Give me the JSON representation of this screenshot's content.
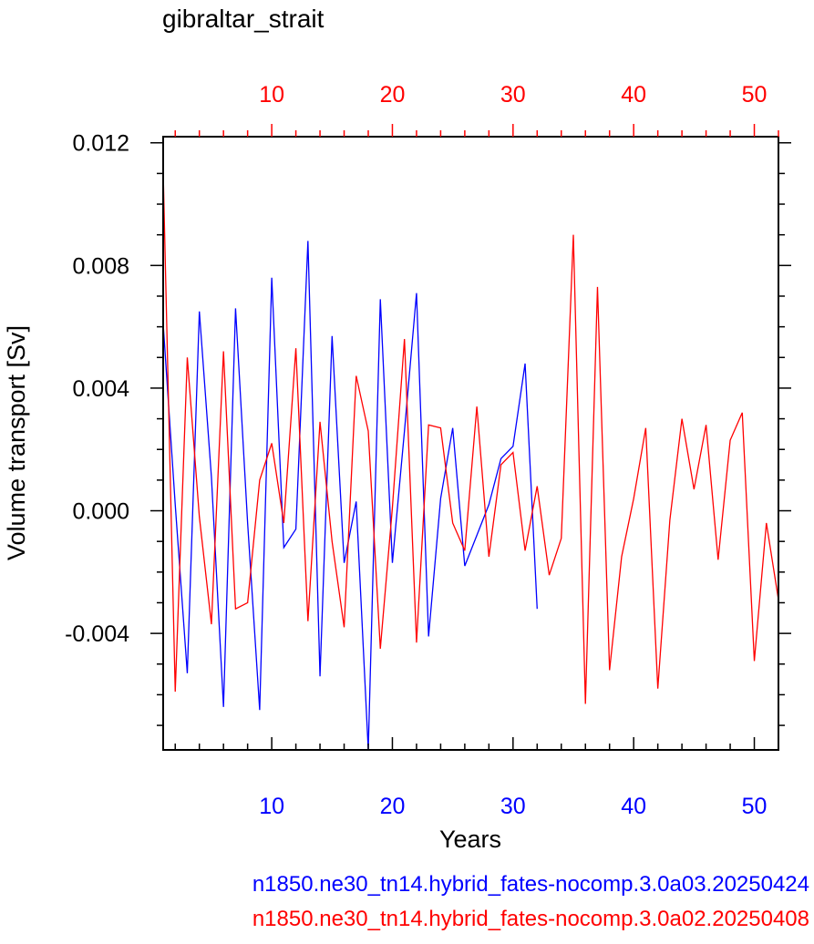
{
  "chart_data": {
    "type": "line",
    "title": "gibraltar_strait",
    "xlabel": "Years",
    "ylabel": "Volume transport [Sv]",
    "ylim": [
      -0.0078,
      0.0122
    ],
    "y_ticks": [
      "-0.004",
      "0.000",
      "0.004",
      "0.008",
      "0.012"
    ],
    "y_tick_values": [
      -0.004,
      0.0,
      0.004,
      0.008,
      0.012
    ],
    "y_minor_step": 0.001,
    "grid": false,
    "bottom_axis": {
      "color": "#0000ff",
      "xlim": [
        1,
        52
      ],
      "ticks": [
        "10",
        "20",
        "30",
        "40",
        "50"
      ],
      "tick_values": [
        10,
        20,
        30,
        40,
        50
      ]
    },
    "top_axis": {
      "color": "#ff0000",
      "xlim": [
        1,
        52
      ],
      "ticks": [
        "10",
        "20",
        "30",
        "40",
        "50"
      ],
      "tick_values": [
        10,
        20,
        30,
        40,
        50
      ]
    },
    "series": [
      {
        "name": "n1850.ne30_tn14.hybrid_fates-nocomp.3.0a03.20250424",
        "color": "#0000ff",
        "x": [
          1,
          2,
          3,
          4,
          5,
          6,
          7,
          8,
          9,
          10,
          11,
          12,
          13,
          14,
          15,
          16,
          17,
          18,
          19,
          20,
          21,
          22,
          23,
          24,
          25,
          26,
          27,
          28,
          29,
          30,
          31,
          32
        ],
        "y": [
          0.0061,
          0.0002,
          -0.0053,
          0.0065,
          0.0011,
          -0.0064,
          0.0066,
          -0.0004,
          -0.0065,
          0.0076,
          -0.0012,
          -0.0006,
          0.0088,
          -0.0054,
          0.0057,
          -0.0017,
          0.0003,
          -0.0078,
          0.0069,
          -0.0017,
          0.0026,
          0.0071,
          -0.0041,
          0.0004,
          0.0027,
          -0.0018,
          -0.0008,
          0.0002,
          0.0017,
          0.0021,
          0.0048,
          -0.0032
        ]
      },
      {
        "name": "n1850.ne30_tn14.hybrid_fates-nocomp.3.0a02.20250408",
        "color": "#ff0000",
        "x": [
          1,
          2,
          3,
          4,
          5,
          6,
          7,
          8,
          9,
          10,
          11,
          12,
          13,
          14,
          15,
          16,
          17,
          18,
          19,
          20,
          21,
          22,
          23,
          24,
          25,
          26,
          27,
          28,
          29,
          30,
          31,
          32,
          33,
          34,
          35,
          36,
          37,
          38,
          39,
          40,
          41,
          42,
          43,
          44,
          45,
          46,
          47,
          48,
          49,
          50,
          51,
          52
        ],
        "y": [
          0.0111,
          -0.0059,
          0.005,
          -0.0002,
          -0.0037,
          0.0052,
          -0.0032,
          -0.003,
          0.001,
          0.0022,
          -0.0004,
          0.0053,
          -0.0036,
          0.0029,
          -0.001,
          -0.0038,
          0.0044,
          0.0026,
          -0.0045,
          0.0001,
          0.0056,
          -0.0043,
          0.0028,
          0.0027,
          -0.0004,
          -0.0013,
          0.0034,
          -0.0015,
          0.0015,
          0.0019,
          -0.0013,
          0.0008,
          -0.0021,
          -0.0009,
          0.009,
          -0.0063,
          0.0073,
          -0.0052,
          -0.0015,
          0.0004,
          0.0027,
          -0.0058,
          -0.0003,
          0.003,
          0.0007,
          0.0028,
          -0.0016,
          0.0023,
          0.0032,
          -0.0049,
          -0.0004,
          -0.0029
        ]
      }
    ]
  }
}
